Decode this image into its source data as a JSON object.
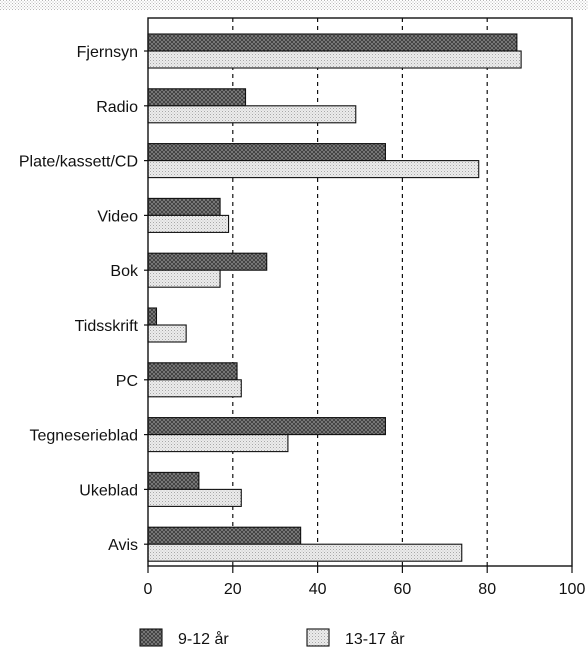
{
  "chart_data": {
    "type": "bar",
    "orientation": "horizontal",
    "categories": [
      "Fjernsyn",
      "Radio",
      "Plate/kassett/CD",
      "Video",
      "Bok",
      "Tidsskrift",
      "PC",
      "Tegneserieblad",
      "Ukeblad",
      "Avis"
    ],
    "series": [
      {
        "name": "9-12 år",
        "values": [
          87,
          23,
          56,
          17,
          28,
          2,
          21,
          56,
          12,
          36
        ],
        "pattern": "dark-crosshatch"
      },
      {
        "name": "13-17 år",
        "values": [
          88,
          49,
          78,
          19,
          17,
          9,
          22,
          33,
          22,
          74
        ],
        "pattern": "light-dotted"
      }
    ],
    "x_ticks": [
      "0",
      "20",
      "40",
      "60",
      "80",
      "100"
    ],
    "xlim": [
      0,
      100
    ],
    "grid": "vertical dashed at 20, 40, 60, 80",
    "legend_placement": "bottom",
    "colors": {
      "dark_fill": "#3a3a3a",
      "light_fill": "#e4e4e4",
      "frame": "#111111"
    }
  }
}
